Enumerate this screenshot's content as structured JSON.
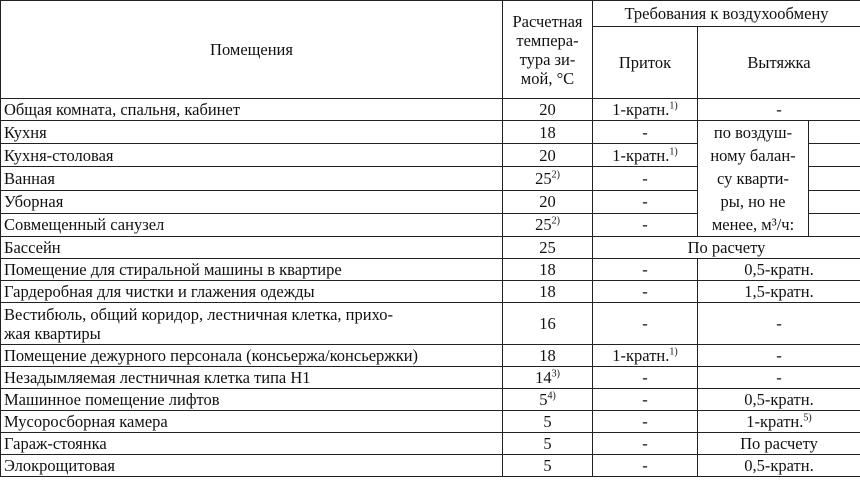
{
  "header": {
    "room": "Помещения",
    "temp": "Расчетная температура зимой, °С",
    "temp_lines": [
      "Расчетная",
      "темпера-",
      "тура зи-",
      "мой, °С"
    ],
    "requirements": "Требования к воздухообмену",
    "supply": "Приток",
    "exhaust": "Вытяжка"
  },
  "balance_note": [
    "по воздуш-",
    "ному балан-",
    "су кварти-",
    "ры, но не",
    "менее, м³/ч:"
  ],
  "rows": [
    {
      "room": "Общая комната, спальня, кабинет",
      "temp": "20",
      "temp_sup": "",
      "supply": "1-кратн.",
      "supply_sup": "1)",
      "exhaust": "-",
      "exhaust_sup": ""
    },
    {
      "room": "Кухня",
      "temp": "18",
      "temp_sup": "",
      "supply": "-",
      "supply_sup": ""
    },
    {
      "room": "Кухня-столовая",
      "temp": "20",
      "temp_sup": "",
      "supply": "1-кратн.",
      "supply_sup": "1)"
    },
    {
      "room": "Ванная",
      "temp": "25",
      "temp_sup": "2)",
      "supply": "-",
      "supply_sup": ""
    },
    {
      "room": "Уборная",
      "temp": "20",
      "temp_sup": "",
      "supply": "-",
      "supply_sup": ""
    },
    {
      "room": "Совмещенный санузел",
      "temp": "25",
      "temp_sup": "2)",
      "supply": "-",
      "supply_sup": ""
    },
    {
      "room": "Бассейн",
      "temp": "25",
      "temp_sup": "",
      "combined": "По расчету"
    },
    {
      "room": "Помещение для стиральной машины в квартире",
      "temp": "18",
      "temp_sup": "",
      "supply": "-",
      "supply_sup": "",
      "exhaust": "0,5-кратн.",
      "exhaust_sup": ""
    },
    {
      "room": "Гардеробная для чистки и глажения одежды",
      "temp": "18",
      "temp_sup": "",
      "supply": "-",
      "supply_sup": "",
      "exhaust": "1,5-кратн.",
      "exhaust_sup": ""
    },
    {
      "room": "Вестибюль, общий коридор, лестничная клетка, прихожая квартиры",
      "room_lines": [
        "Вестибюль, общий коридор, лестничная клетка, прихо-",
        "жая квартиры"
      ],
      "temp": "16",
      "temp_sup": "",
      "supply": "-",
      "supply_sup": "",
      "exhaust": "-",
      "exhaust_sup": ""
    },
    {
      "room": "Помещение дежурного персонала (консьержа/консьержки)",
      "temp": "18",
      "temp_sup": "",
      "supply": "1-кратн.",
      "supply_sup": "1)",
      "exhaust": "-",
      "exhaust_sup": ""
    },
    {
      "room": "Незадымляемая лестничная клетка типа Н1",
      "temp": "14",
      "temp_sup": "3)",
      "supply": "-",
      "supply_sup": "",
      "exhaust": "-",
      "exhaust_sup": ""
    },
    {
      "room": "Машинное помещение лифтов",
      "temp": "5",
      "temp_sup": "4)",
      "supply": "-",
      "supply_sup": "",
      "exhaust": "0,5-кратн.",
      "exhaust_sup": ""
    },
    {
      "room": "Мусоросборная камера",
      "temp": "5",
      "temp_sup": "",
      "supply": "-",
      "supply_sup": "",
      "exhaust": "1-кратн.",
      "exhaust_sup": "5)"
    },
    {
      "room": "Гараж-стоянка",
      "temp": "5",
      "temp_sup": "",
      "supply": "-",
      "supply_sup": "",
      "exhaust": "По расчету",
      "exhaust_sup": ""
    },
    {
      "room": "Элокрощитовая",
      "temp": "5",
      "temp_sup": "",
      "supply": "-",
      "supply_sup": "",
      "exhaust": "0,5-кратн.",
      "exhaust_sup": ""
    }
  ]
}
